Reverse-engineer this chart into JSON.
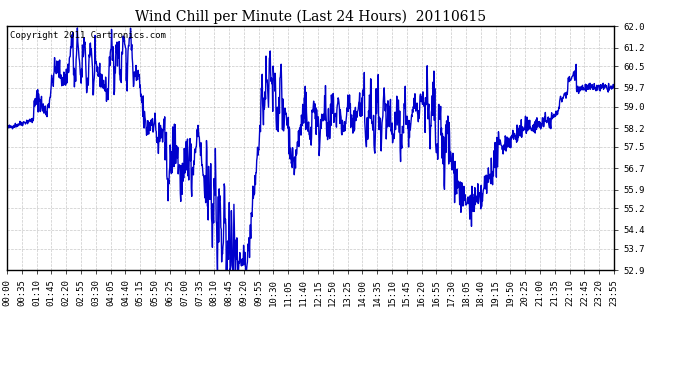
{
  "title": "Wind Chill per Minute (Last 24 Hours)  20110615",
  "copyright_text": "Copyright 2011 Cartronics.com",
  "line_color": "#0000cc",
  "background_color": "#ffffff",
  "grid_color": "#bbbbbb",
  "yticks": [
    52.9,
    53.7,
    54.4,
    55.2,
    55.9,
    56.7,
    57.5,
    58.2,
    59.0,
    59.7,
    60.5,
    61.2,
    62.0
  ],
  "ylim": [
    52.9,
    62.0
  ],
  "xtick_labels": [
    "00:00",
    "00:35",
    "01:10",
    "01:45",
    "02:20",
    "02:55",
    "03:30",
    "04:05",
    "04:40",
    "05:15",
    "05:50",
    "06:25",
    "07:00",
    "07:35",
    "08:10",
    "08:45",
    "09:20",
    "09:55",
    "10:30",
    "11:05",
    "11:40",
    "12:15",
    "12:50",
    "13:25",
    "14:00",
    "14:35",
    "15:10",
    "15:45",
    "16:20",
    "16:55",
    "17:30",
    "18:05",
    "18:40",
    "19:15",
    "19:50",
    "20:25",
    "21:00",
    "21:35",
    "22:10",
    "22:45",
    "23:20",
    "23:55"
  ],
  "line_width": 1.0,
  "title_fontsize": 10,
  "tick_fontsize": 6.5,
  "copyright_fontsize": 6.5
}
